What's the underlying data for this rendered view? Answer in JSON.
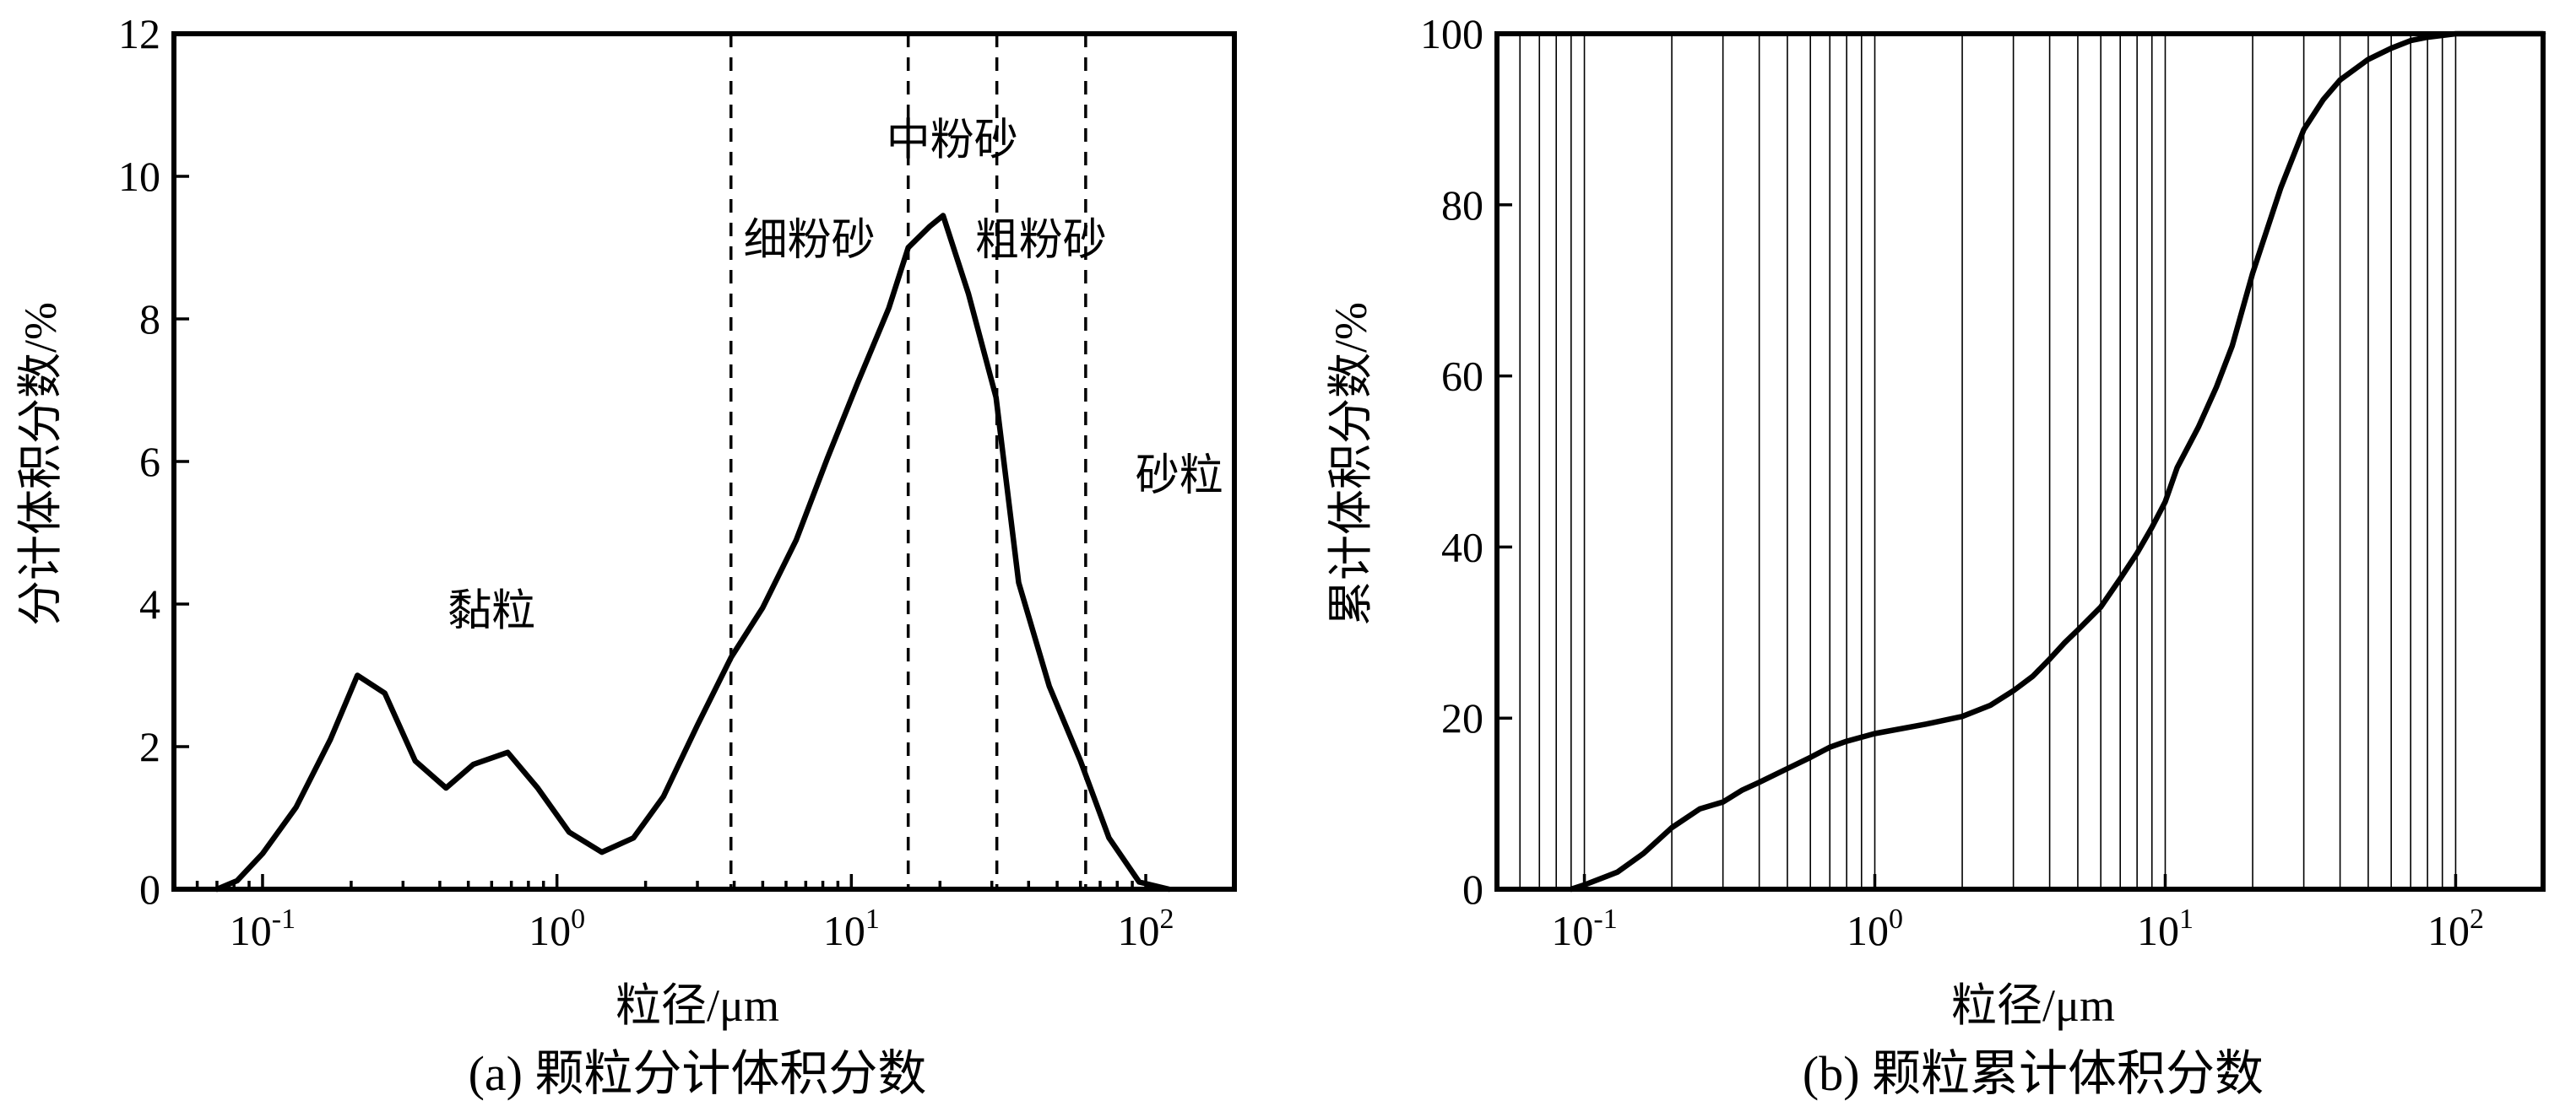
{
  "chart_data": [
    {
      "id": "a",
      "type": "line",
      "caption": "(a) 颗粒分计体积分数",
      "xlabel": "粒径/μm",
      "ylabel": "分计体积分数/%",
      "xscale": "log",
      "xlim": [
        0.05,
        200
      ],
      "ylim": [
        0,
        12
      ],
      "yticks": [
        0,
        2,
        4,
        6,
        8,
        10,
        12
      ],
      "xticks": [
        {
          "value": 0.1,
          "base": "10",
          "exp": "-1"
        },
        {
          "value": 1,
          "base": "10",
          "exp": "0"
        },
        {
          "value": 10,
          "base": "10",
          "exp": "1"
        },
        {
          "value": 100,
          "base": "10",
          "exp": "2"
        }
      ],
      "dividers": [
        3.9,
        15.6,
        31.2,
        62.5
      ],
      "zones": [
        {
          "label": "黏粒",
          "x": 0.6,
          "y": 3.7
        },
        {
          "label": "细粉砂",
          "x": 7.2,
          "y": 8.9
        },
        {
          "label": "中粉砂",
          "x": 22,
          "y": 10.3
        },
        {
          "label": "粗粉砂",
          "x": 44,
          "y": 8.9
        },
        {
          "label": "砂粒",
          "x": 130,
          "y": 5.6
        }
      ],
      "series": [
        {
          "x": [
            0.07,
            0.082,
            0.1,
            0.13,
            0.17,
            0.21,
            0.26,
            0.33,
            0.42,
            0.52,
            0.68,
            0.86,
            1.1,
            1.42,
            1.82,
            2.3,
            3.0,
            3.9,
            5.0,
            6.5,
            8.3,
            10.5,
            13.4,
            15.6,
            18.5,
            20.5,
            25,
            31,
            37,
            47,
            60,
            75,
            95,
            120
          ],
          "y": [
            0,
            0.12,
            0.5,
            1.15,
            2.1,
            3.0,
            2.75,
            1.8,
            1.42,
            1.75,
            1.92,
            1.42,
            0.8,
            0.52,
            0.72,
            1.3,
            2.3,
            3.25,
            3.95,
            4.9,
            6.05,
            7.1,
            8.15,
            9.0,
            9.3,
            9.45,
            8.35,
            6.9,
            4.3,
            2.85,
            1.8,
            0.72,
            0.1,
            0
          ]
        }
      ]
    },
    {
      "id": "b",
      "type": "line",
      "caption": "(b) 颗粒累计体积分数",
      "xlabel": "粒径/μm",
      "ylabel": "累计体积分数/%",
      "xscale": "log",
      "xlim": [
        0.05,
        200
      ],
      "ylim": [
        0,
        100
      ],
      "yticks": [
        0,
        20,
        40,
        60,
        80,
        100
      ],
      "xticks": [
        {
          "value": 0.1,
          "base": "10",
          "exp": "-1"
        },
        {
          "value": 1,
          "base": "10",
          "exp": "0"
        },
        {
          "value": 10,
          "base": "10",
          "exp": "1"
        },
        {
          "value": 100,
          "base": "10",
          "exp": "2"
        }
      ],
      "grid": "log-minor",
      "series": [
        {
          "x": [
            0.09,
            0.1,
            0.13,
            0.16,
            0.2,
            0.25,
            0.3,
            0.35,
            0.4,
            0.5,
            0.6,
            0.7,
            0.8,
            1.0,
            1.5,
            2.0,
            2.5,
            3.0,
            3.5,
            4.0,
            4.5,
            5.0,
            6.0,
            7.0,
            8.0,
            9.0,
            10.0,
            11.0,
            13.0,
            15.0,
            17.0,
            20.0,
            25.0,
            30.0,
            35.0,
            40.0,
            50.0,
            60.0,
            70.0,
            80.0,
            100.0,
            200.0
          ],
          "y": [
            0,
            0.5,
            2.0,
            4.2,
            7.2,
            9.4,
            10.2,
            11.6,
            12.5,
            14.1,
            15.4,
            16.6,
            17.3,
            18.2,
            19.3,
            20.2,
            21.5,
            23.2,
            24.9,
            26.9,
            28.8,
            30.3,
            33.0,
            36.3,
            39.3,
            42.3,
            45.3,
            49.3,
            54.0,
            58.7,
            63.5,
            72.0,
            82.0,
            88.8,
            92.3,
            94.6,
            97.0,
            98.3,
            99.2,
            99.6,
            100,
            100
          ]
        }
      ]
    }
  ]
}
